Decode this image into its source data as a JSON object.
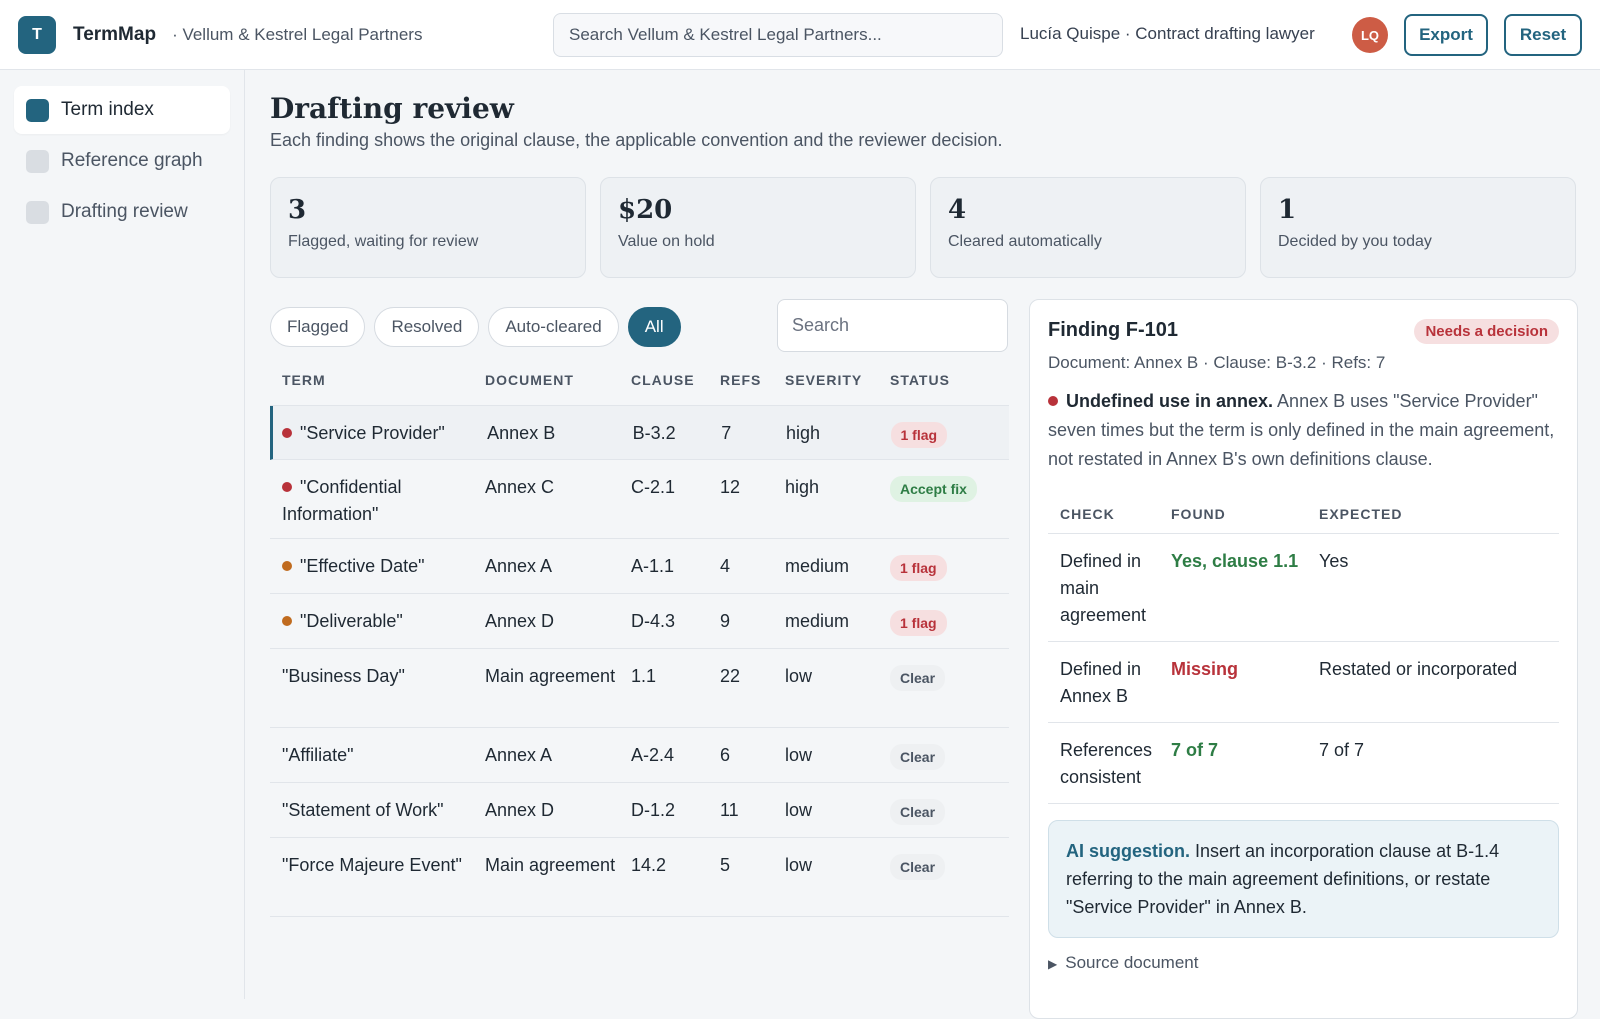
{
  "topbar": {
    "logo_letter": "T",
    "app_name": "TermMap",
    "org_name": "· Vellum & Kestrel Legal Partners",
    "search_placeholder": "Search Vellum & Kestrel Legal Partners...",
    "user_name": "Lucía Quispe · Contract drafting lawyer",
    "avatar_initials": "LQ",
    "export_label": "Export",
    "reset_label": "Reset"
  },
  "sidebar": {
    "items": [
      {
        "label": "Term index",
        "active": true
      },
      {
        "label": "Reference graph",
        "active": false
      },
      {
        "label": "Drafting review",
        "active": false
      }
    ]
  },
  "page": {
    "title": "Drafting review",
    "subtitle": "Each finding shows the original clause, the applicable convention and the reviewer decision."
  },
  "stats": [
    {
      "value": "3",
      "label": "Flagged, waiting for review"
    },
    {
      "value": "$20",
      "label": "Value on hold"
    },
    {
      "value": "4",
      "label": "Cleared automatically"
    },
    {
      "value": "1",
      "label": "Decided by you today"
    }
  ],
  "filters": {
    "chips": [
      "Flagged",
      "Resolved",
      "Auto-cleared",
      "All"
    ],
    "active": "All",
    "search_placeholder": "Search"
  },
  "table": {
    "headers": {
      "term": "TERM",
      "document": "DOCUMENT",
      "clause": "CLAUSE",
      "refs": "REFS",
      "severity": "SEVERITY",
      "status": "STATUS"
    },
    "rows": [
      {
        "term": "\"Service Provider\"",
        "document": "Annex B",
        "clause": "B-3.2",
        "refs": "7",
        "severity": "high",
        "status": "1 flag",
        "status_kind": "flag",
        "dot": "high",
        "selected": true
      },
      {
        "term": "\"Confidential Information\"",
        "document": "Annex C",
        "clause": "C-2.1",
        "refs": "12",
        "severity": "high",
        "status": "Accept fix",
        "status_kind": "accept",
        "dot": "high",
        "selected": false
      },
      {
        "term": "\"Effective Date\"",
        "document": "Annex A",
        "clause": "A-1.1",
        "refs": "4",
        "severity": "medium",
        "status": "1 flag",
        "status_kind": "flag",
        "dot": "medium",
        "selected": false
      },
      {
        "term": "\"Deliverable\"",
        "document": "Annex D",
        "clause": "D-4.3",
        "refs": "9",
        "severity": "medium",
        "status": "1 flag",
        "status_kind": "flag",
        "dot": "medium",
        "selected": false
      },
      {
        "term": "\"Business Day\"",
        "document": "Main agreement",
        "clause": "1.1",
        "refs": "22",
        "severity": "low",
        "status": "Clear",
        "status_kind": "clear",
        "dot": "",
        "selected": false
      },
      {
        "term": "\"Affiliate\"",
        "document": "Annex A",
        "clause": "A-2.4",
        "refs": "6",
        "severity": "low",
        "status": "Clear",
        "status_kind": "clear",
        "dot": "",
        "selected": false
      },
      {
        "term": "\"Statement of Work\"",
        "document": "Annex D",
        "clause": "D-1.2",
        "refs": "11",
        "severity": "low",
        "status": "Clear",
        "status_kind": "clear",
        "dot": "",
        "selected": false
      },
      {
        "term": "\"Force Majeure Event\"",
        "document": "Main agreement",
        "clause": "14.2",
        "refs": "5",
        "severity": "low",
        "status": "Clear",
        "status_kind": "clear",
        "dot": "",
        "selected": false
      }
    ]
  },
  "detail": {
    "title": "Finding F-101",
    "badge": "Needs a decision",
    "meta": "Document: Annex B · Clause: B-3.2 · Refs: 7",
    "finding_head": "Undefined use in annex.",
    "finding_body": " Annex B uses \"Service Provider\" seven times but the term is only defined in the main agreement, not restated in Annex B's own definitions clause.",
    "checks": {
      "headers": {
        "check": "CHECK",
        "found": "FOUND",
        "expected": "EXPECTED"
      },
      "rows": [
        {
          "check": "Defined in main agreement",
          "found": "Yes, clause 1.1",
          "found_kind": "ok",
          "expected": "Yes"
        },
        {
          "check": "Defined in Annex B",
          "found": "Missing",
          "found_kind": "bad",
          "expected": "Restated or incorporated"
        },
        {
          "check": "References consistent",
          "found": "7 of 7",
          "found_kind": "ok",
          "expected": "7 of 7"
        }
      ]
    },
    "ai_lead": "AI suggestion.",
    "ai_text": " Insert an incorporation clause at B-1.4 referring to the main agreement definitions, or restate \"Service Provider\" in Annex B.",
    "source_toggle": "Source document"
  },
  "colors": {
    "accent": "#23647f",
    "danger": "#b8323a",
    "warning": "#c06b1f",
    "success": "#2e7d45",
    "avatar": "#cd5c45"
  }
}
